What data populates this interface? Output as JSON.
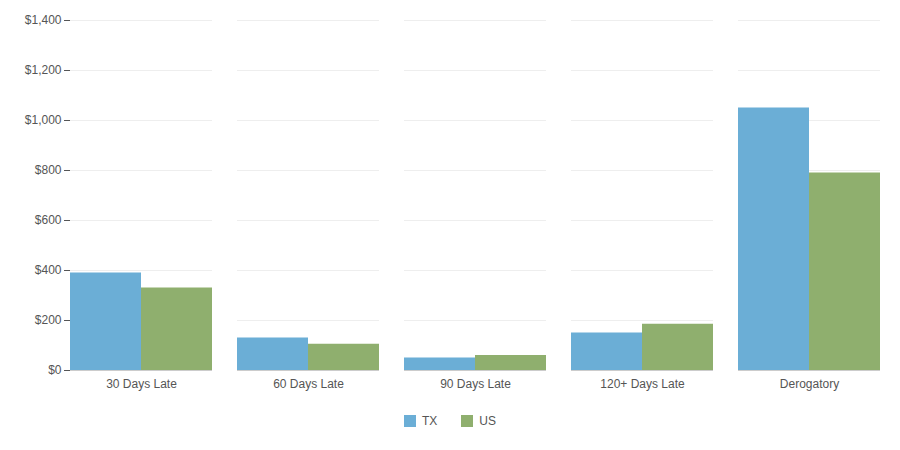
{
  "chart_data": {
    "type": "bar",
    "categories": [
      "30 Days Late",
      "60 Days Late",
      "90 Days Late",
      "120+ Days Late",
      "Derogatory"
    ],
    "series": [
      {
        "name": "TX",
        "color": "#6BAED6",
        "values": [
          390,
          130,
          50,
          150,
          1050
        ]
      },
      {
        "name": "US",
        "color": "#8FAF6E",
        "values": [
          330,
          105,
          60,
          185,
          790
        ]
      }
    ],
    "ylim": [
      0,
      1400
    ],
    "yticks": [
      {
        "value": 0,
        "label": "$0"
      },
      {
        "value": 200,
        "label": "$200"
      },
      {
        "value": 400,
        "label": "$400"
      },
      {
        "value": 600,
        "label": "$600"
      },
      {
        "value": 800,
        "label": "$800"
      },
      {
        "value": 1000,
        "label": "$1,000"
      },
      {
        "value": 1200,
        "label": "$1,200"
      },
      {
        "value": 1400,
        "label": "$1,400"
      }
    ],
    "grid": true,
    "legend": "bottom"
  }
}
